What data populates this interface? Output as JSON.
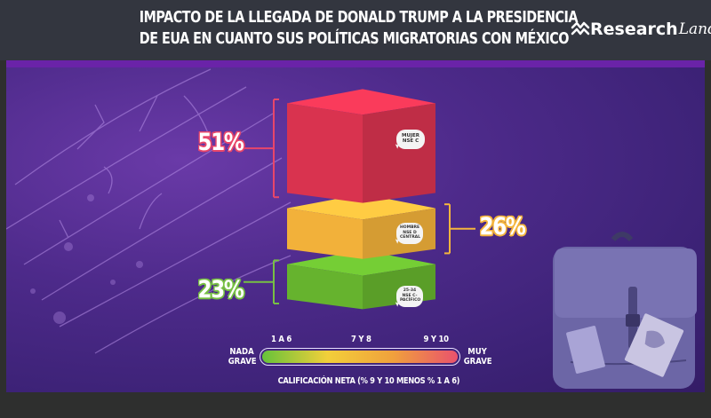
{
  "header": {
    "title_line1": "IMPACTO DE LA LLEGADA DE DONALD TRUMP A LA PRESIDENCIA",
    "title_line2": "DE EUA EN CUANTO SUS POLÍTICAS MIGRATORIAS CON MÉXICO",
    "logo_text": "Research",
    "logo_script": "Land",
    "logo_icon": "double-wave-arrow-icon"
  },
  "colors": {
    "header_bg": "#33363f",
    "panel_purple": "#4d2a8a",
    "accent_bar": "#6a23a8",
    "red": "#d9334f",
    "yellow": "#f2b13a",
    "green": "#66b32e",
    "pct_red": "#e8466a",
    "pct_yellow": "#f5b53d",
    "pct_green": "#77c043"
  },
  "chart_data": {
    "type": "bar",
    "title": "IMPACTO DE LA LLEGADA DE DONALD TRUMP A LA PRESIDENCIA DE EUA EN CUANTO SUS POLÍTICAS MIGRATORIAS CON MÉXICO",
    "orientation": "stacked-vertical-blocks",
    "categories": [
      "9 Y 10",
      "7 Y 8",
      "1 A 6"
    ],
    "values": [
      51,
      26,
      23
    ],
    "unit": "%",
    "series": [
      {
        "name": "9 Y 10",
        "value": 51,
        "label": "51%",
        "color": "#d9334f",
        "bubble": [
          "MUJER",
          "NSE C"
        ],
        "side": "left"
      },
      {
        "name": "7 Y 8",
        "value": 26,
        "label": "26%",
        "color": "#f2b13a",
        "bubble": [
          "HOMBRE",
          "NSE D",
          "CENTRAL"
        ],
        "side": "right"
      },
      {
        "name": "1 A 6",
        "value": 23,
        "label": "23%",
        "color": "#66b32e",
        "bubble": [
          "25-34",
          "NSE C-",
          "PACÍFICO"
        ],
        "side": "left"
      }
    ],
    "scale": {
      "left_label": "NADA GRAVE",
      "right_label": "MUY GRAVE",
      "ticks": [
        "1 A 6",
        "7 Y 8",
        "9 Y 10"
      ],
      "gradient": [
        "#66c23a",
        "#f2cf3a",
        "#f0a13c",
        "#e9526d"
      ]
    },
    "xlabel": "CALIFICACIÓN NETA (% 9 Y 10 MENOS % 1 A 6)",
    "ylabel": ""
  }
}
